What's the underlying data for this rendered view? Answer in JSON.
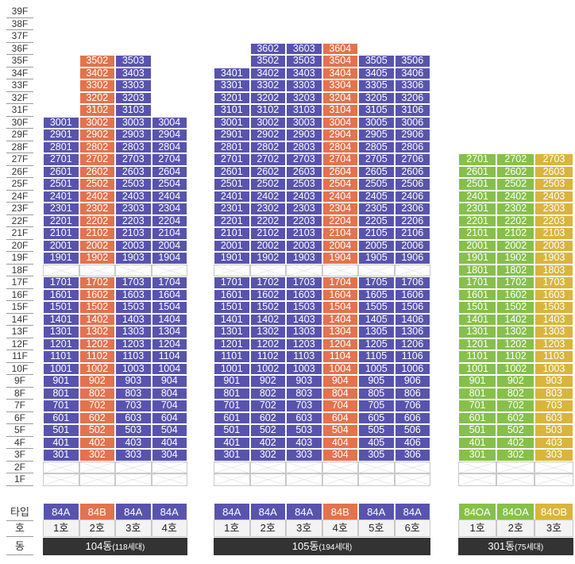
{
  "colors": {
    "type_84A": "#5854AE",
    "type_84B": "#E2734E",
    "type_84OA": "#86C04A",
    "type_84OB": "#D9B53C",
    "label_bar": "#333333"
  },
  "floors": [
    "39F",
    "38F",
    "37F",
    "36F",
    "35F",
    "34F",
    "33F",
    "32F",
    "31F",
    "30F",
    "29F",
    "28F",
    "27F",
    "26F",
    "25F",
    "24F",
    "23F",
    "22F",
    "21F",
    "20F",
    "19F",
    "18F",
    "17F",
    "16F",
    "15F",
    "14F",
    "13F",
    "12F",
    "11F",
    "10F",
    "9F",
    "8F",
    "7F",
    "6F",
    "5F",
    "4F",
    "3F",
    "2F",
    "1F"
  ],
  "row_labels": {
    "type": "타입",
    "ho": "호",
    "dong": "동"
  },
  "buildings": [
    {
      "name": "104동",
      "households": "(118세대)",
      "types": [
        "84A",
        "84B",
        "84A",
        "84A"
      ],
      "type_colors": [
        "type_84A",
        "type_84B",
        "type_84A",
        "type_84A"
      ],
      "ho": [
        "1호",
        "2호",
        "3호",
        "4호"
      ],
      "lines": [
        "01",
        "02",
        "03",
        "04"
      ],
      "tops": [
        30,
        35,
        35,
        30
      ],
      "empty_floors": [
        18,
        2,
        1
      ],
      "first_floor": 3
    },
    {
      "name": "105동",
      "households": "(194세대)",
      "types": [
        "84A",
        "84A",
        "84A",
        "84B",
        "84A",
        "84A"
      ],
      "type_colors": [
        "type_84A",
        "type_84A",
        "type_84A",
        "type_84B",
        "type_84A",
        "type_84A"
      ],
      "ho": [
        "1호",
        "2호",
        "3호",
        "4호",
        "5호",
        "6호"
      ],
      "lines": [
        "01",
        "02",
        "03",
        "04",
        "05",
        "06"
      ],
      "tops": [
        34,
        36,
        36,
        36,
        35,
        35
      ],
      "empty_floors": [
        18,
        2,
        1
      ],
      "first_floor": 3
    },
    {
      "name": "301동",
      "households": "(75세대)",
      "types": [
        "84OA",
        "84OA",
        "84OB"
      ],
      "type_colors": [
        "type_84OA",
        "type_84OA",
        "type_84OB"
      ],
      "ho": [
        "1호",
        "2호",
        "3호"
      ],
      "lines": [
        "01",
        "02",
        "03"
      ],
      "tops": [
        27,
        27,
        27
      ],
      "empty_floors": [
        2,
        1
      ],
      "first_floor": 3
    }
  ]
}
